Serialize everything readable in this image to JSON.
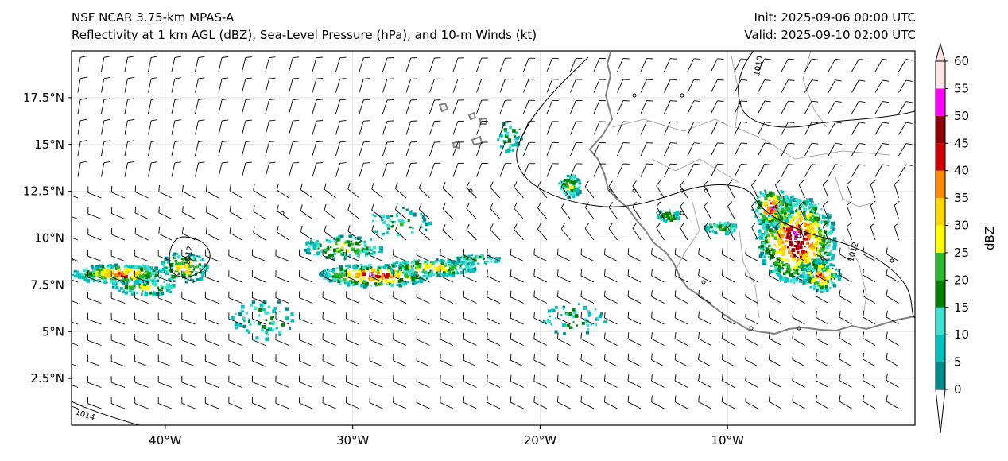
{
  "header": {
    "title_left_1": "NSF NCAR 3.75-km MPAS-A",
    "title_left_2": "Reflectivity at 1 km AGL (dBZ), Sea-Level Pressure (hPa), and 10-m Winds (kt)",
    "title_right_1": "Init: 2025-09-06 00:00 UTC",
    "title_right_2": "Valid: 2025-09-10 02:00 UTC"
  },
  "map": {
    "lon_range": [
      -45,
      0
    ],
    "lat_range": [
      0,
      20
    ],
    "lon_ticks": [
      {
        "value": -40,
        "label": "40°W"
      },
      {
        "value": -30,
        "label": "30°W"
      },
      {
        "value": -20,
        "label": "20°W"
      },
      {
        "value": -10,
        "label": "10°W"
      }
    ],
    "lat_ticks": [
      {
        "value": 2.5,
        "label": "2.5°N"
      },
      {
        "value": 5,
        "label": "5°N"
      },
      {
        "value": 7.5,
        "label": "7.5°N"
      },
      {
        "value": 10,
        "label": "10°N"
      },
      {
        "value": 12.5,
        "label": "12.5°N"
      },
      {
        "value": 15,
        "label": "15°N"
      },
      {
        "value": 17.5,
        "label": "17.5°N"
      }
    ],
    "isobar_labels": [
      "1010",
      "1014",
      "1012",
      "1012"
    ],
    "colors": {
      "coastline": "#808080",
      "isobar": "#000000",
      "border": "#a0a0a0",
      "grid": "#e8e8e8"
    }
  },
  "colorbar": {
    "label": "dBZ",
    "ticks": [
      0,
      5,
      10,
      15,
      20,
      25,
      30,
      35,
      40,
      45,
      50,
      55,
      60
    ],
    "colors": [
      "#008b8b",
      "#00c0c0",
      "#40e0d0",
      "#008000",
      "#2db82d",
      "#ffff00",
      "#ffd700",
      "#ff8c00",
      "#cc0000",
      "#8b0000",
      "#ff00ff",
      "#ffe4e1"
    ]
  }
}
